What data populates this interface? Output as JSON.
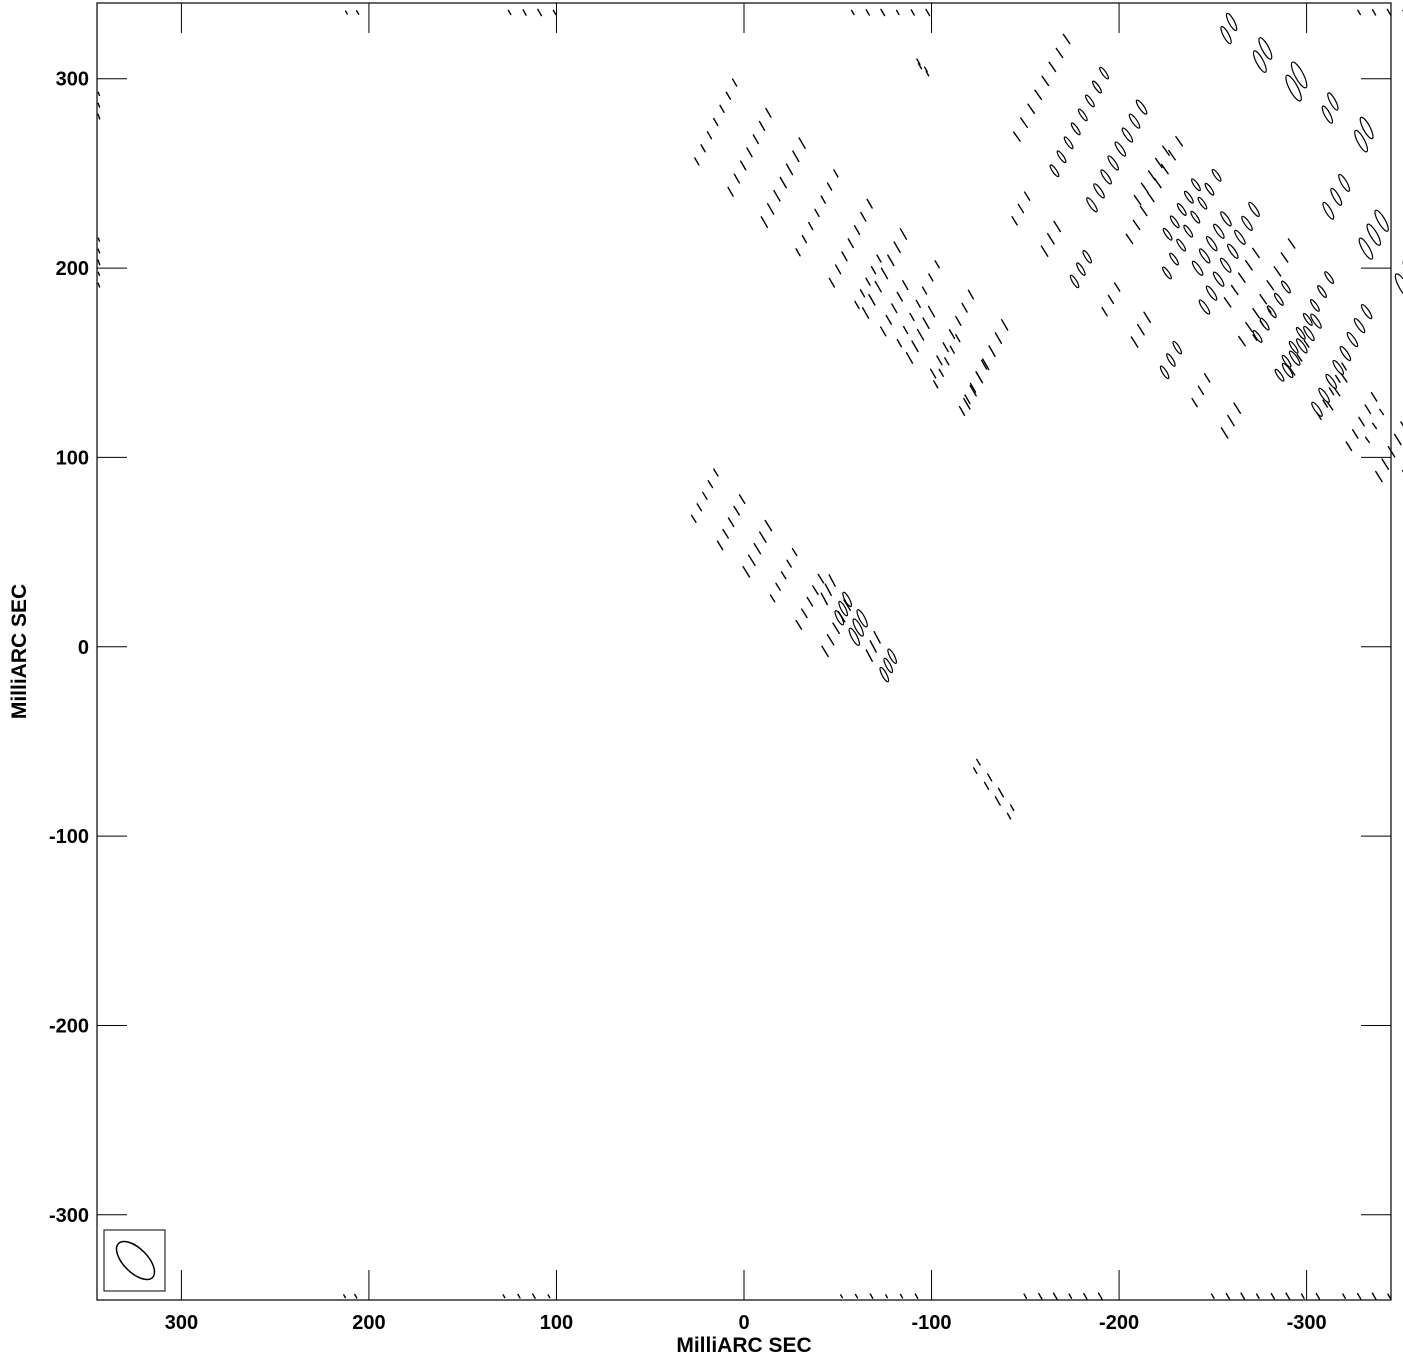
{
  "chart_data": {
    "type": "contour",
    "title": "",
    "xlabel": "MilliARC SEC",
    "ylabel": "MilliARC SEC",
    "xlim": [
      345,
      -345
    ],
    "ylim": [
      -345,
      340
    ],
    "xticks": [
      300,
      200,
      100,
      0,
      -100,
      -200,
      -300
    ],
    "xtick_labels": [
      "300",
      "200",
      "100",
      "0",
      "-100",
      "-200",
      "-300"
    ],
    "yticks": [
      300,
      200,
      100,
      0,
      -100,
      -200,
      -300
    ],
    "ytick_labels": [
      "300",
      "200",
      "100",
      "0",
      "-100",
      "-200",
      "-300"
    ],
    "grid": false,
    "beam": {
      "corner": "bottom-left",
      "pa_deg": 45,
      "major_mas": 24,
      "minor_mas": 12
    },
    "contour_color": "#000000",
    "features": [
      {
        "name": "complex-top-1",
        "x": 5,
        "y": 298,
        "dx": -18,
        "dy": -16,
        "rows": 9,
        "cols": 7,
        "len": 5,
        "angle": 60
      },
      {
        "name": "complex-top-2",
        "x": -97,
        "y": 305,
        "dx": 4,
        "dy": 4,
        "rows": 2,
        "cols": 2,
        "len": 3,
        "angle": 60
      },
      {
        "name": "complex-top-3",
        "x": -172,
        "y": 321,
        "dx": -20,
        "dy": -18,
        "rows": 9,
        "cols": 8,
        "len": 7,
        "angle": 55
      },
      {
        "name": "complex-top-4",
        "x": -225,
        "y": 262,
        "dx": -16,
        "dy": -18,
        "rows": 6,
        "cols": 5,
        "len": 7,
        "angle": 55
      },
      {
        "name": "complex-top-5",
        "x": -260,
        "y": 330,
        "dx": -18,
        "dy": -14,
        "rows": 5,
        "cols": 2,
        "len": 12,
        "angle": 62
      },
      {
        "name": "complex-top-6",
        "x": -320,
        "y": 245,
        "dx": -20,
        "dy": -20,
        "rows": 14,
        "cols": 3,
        "len": 12,
        "angle": 60
      },
      {
        "name": "complex-top-7",
        "x": -151,
        "y": 238,
        "dx": -16,
        "dy": -16,
        "rows": 8,
        "cols": 3,
        "len": 6,
        "angle": 58
      },
      {
        "name": "complex-mid-1",
        "x": -72,
        "y": 205,
        "dx": -14,
        "dy": -14,
        "rows": 5,
        "cols": 5,
        "len": 5,
        "angle": 60
      },
      {
        "name": "complex-right-1",
        "x": -280,
        "y": 178,
        "dx": -20,
        "dy": -18,
        "rows": 9,
        "cols": 3,
        "len": 4,
        "angle": 55
      },
      {
        "name": "complex-right-2",
        "x": -320,
        "y": 148,
        "dx": -16,
        "dy": -16,
        "rows": 6,
        "cols": 5,
        "len": 5,
        "angle": 58
      },
      {
        "name": "complex-center-1",
        "x": 15,
        "y": 92,
        "dx": -14,
        "dy": -14,
        "rows": 6,
        "cols": 5,
        "len": 5,
        "angle": 58
      },
      {
        "name": "complex-center-2",
        "x": -47,
        "y": 35,
        "dx": -8,
        "dy": -10,
        "rows": 5,
        "cols": 3,
        "len": 8,
        "angle": 62
      },
      {
        "name": "complex-lower-1",
        "x": -125,
        "y": -61,
        "dx": -6,
        "dy": -8,
        "rows": 4,
        "cols": 2,
        "len": 4,
        "angle": 60
      },
      {
        "name": "edge-top-1",
        "x": 212,
        "y": 335,
        "dx": -6,
        "dy": 0,
        "rows": 2,
        "cols": 1,
        "len": 2,
        "angle": 60
      },
      {
        "name": "edge-top-2",
        "x": 125,
        "y": 335,
        "dx": -8,
        "dy": 0,
        "rows": 4,
        "cols": 1,
        "len": 3,
        "angle": 60
      },
      {
        "name": "edge-top-3",
        "x": -58,
        "y": 335,
        "dx": -8,
        "dy": 0,
        "rows": 6,
        "cols": 1,
        "len": 3,
        "angle": 60
      },
      {
        "name": "edge-top-4",
        "x": -328,
        "y": 335,
        "dx": -8,
        "dy": 0,
        "rows": 6,
        "cols": 1,
        "len": 3,
        "angle": 60
      },
      {
        "name": "edge-bottom-1",
        "x": 213,
        "y": -343,
        "dx": -6,
        "dy": 0,
        "rows": 2,
        "cols": 1,
        "len": 2,
        "angle": 60
      },
      {
        "name": "edge-bottom-2",
        "x": 128,
        "y": -343,
        "dx": -8,
        "dy": 0,
        "rows": 4,
        "cols": 1,
        "len": 2,
        "angle": 60
      },
      {
        "name": "edge-bottom-3",
        "x": -52,
        "y": -343,
        "dx": -8,
        "dy": 0,
        "rows": 6,
        "cols": 1,
        "len": 2,
        "angle": 60
      },
      {
        "name": "edge-bottom-4",
        "x": -150,
        "y": -343,
        "dx": -8,
        "dy": 0,
        "rows": 6,
        "cols": 1,
        "len": 3,
        "angle": 60
      },
      {
        "name": "edge-bottom-5",
        "x": -250,
        "y": -343,
        "dx": -8,
        "dy": 0,
        "rows": 8,
        "cols": 1,
        "len": 3,
        "angle": 60
      },
      {
        "name": "edge-bottom-6",
        "x": -320,
        "y": -343,
        "dx": -8,
        "dy": 0,
        "rows": 4,
        "cols": 1,
        "len": 3,
        "angle": 60
      },
      {
        "name": "edge-left-1",
        "x": 344,
        "y": 292,
        "dx": 0,
        "dy": -6,
        "rows": 3,
        "cols": 1,
        "len": 2,
        "angle": 70
      },
      {
        "name": "edge-left-2",
        "x": 344,
        "y": 215,
        "dx": 0,
        "dy": -6,
        "rows": 5,
        "cols": 1,
        "len": 2,
        "angle": 70
      }
    ]
  }
}
